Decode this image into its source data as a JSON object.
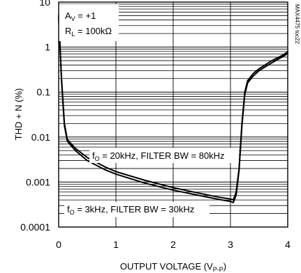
{
  "chart_data": {
    "type": "line",
    "xlabel": "OUTPUT VOLTAGE (V",
    "xlabel_sub": "P-P",
    "xlabel_end": ")",
    "ylabel": "THD + N (%)",
    "x_scale": "linear",
    "y_scale": "log",
    "xlim": [
      0,
      4
    ],
    "ylim": [
      0.0001,
      10
    ],
    "x_ticks": [
      0,
      1,
      2,
      3,
      4
    ],
    "x_tick_labels": [
      "0",
      "1",
      "2",
      "3",
      "4"
    ],
    "y_ticks": [
      0.0001,
      0.001,
      0.01,
      0.1,
      1,
      10
    ],
    "y_tick_labels": [
      "0.0001",
      "0.001",
      "0.01",
      "0.1",
      "1",
      "10"
    ],
    "grid": true,
    "conditions": {
      "av": {
        "prefix": "A",
        "sub": "V",
        "suffix": " = +1"
      },
      "rl": {
        "prefix": "R",
        "sub": "L",
        "suffix": " = 100kΩ"
      }
    },
    "annotations": [
      {
        "prefix": "f",
        "sub": "O",
        "suffix": " = 20kHz, FILTER BW = 80kHz"
      },
      {
        "prefix": "f",
        "sub": "O",
        "suffix": " = 3kHz, FILTER BW = 30kHz"
      }
    ],
    "watermark": "MAX4475 toc22",
    "series": [
      {
        "x": [
          0.0,
          0.05,
          0.1,
          0.15,
          0.2,
          0.3,
          0.5,
          0.8,
          1.0,
          1.5,
          2.0,
          2.5,
          2.8,
          3.0,
          3.05,
          3.1,
          3.15,
          3.2,
          3.25,
          3.3,
          3.4,
          3.5,
          3.7,
          3.9,
          4.0
        ],
        "y": [
          5.0,
          0.2,
          0.02,
          0.009,
          0.0075,
          0.0055,
          0.0035,
          0.0022,
          0.0017,
          0.0011,
          0.00075,
          0.00055,
          0.00046,
          0.00042,
          0.0004,
          0.0006,
          0.002,
          0.02,
          0.1,
          0.18,
          0.26,
          0.33,
          0.48,
          0.65,
          0.78
        ]
      },
      {
        "x": [
          0.0,
          0.05,
          0.1,
          0.15,
          0.2,
          0.3,
          0.5,
          0.8,
          1.0,
          1.5,
          2.0,
          2.5,
          2.8,
          3.0,
          3.05,
          3.1,
          3.15,
          3.2,
          3.25,
          3.3,
          3.4,
          3.5,
          3.7,
          3.9,
          4.0
        ],
        "y": [
          4.5,
          0.18,
          0.018,
          0.0082,
          0.0068,
          0.0049,
          0.003,
          0.0019,
          0.0015,
          0.00095,
          0.00066,
          0.00049,
          0.00041,
          0.00037,
          0.00035,
          0.00052,
          0.0018,
          0.018,
          0.088,
          0.16,
          0.23,
          0.3,
          0.43,
          0.6,
          0.72
        ]
      }
    ]
  }
}
